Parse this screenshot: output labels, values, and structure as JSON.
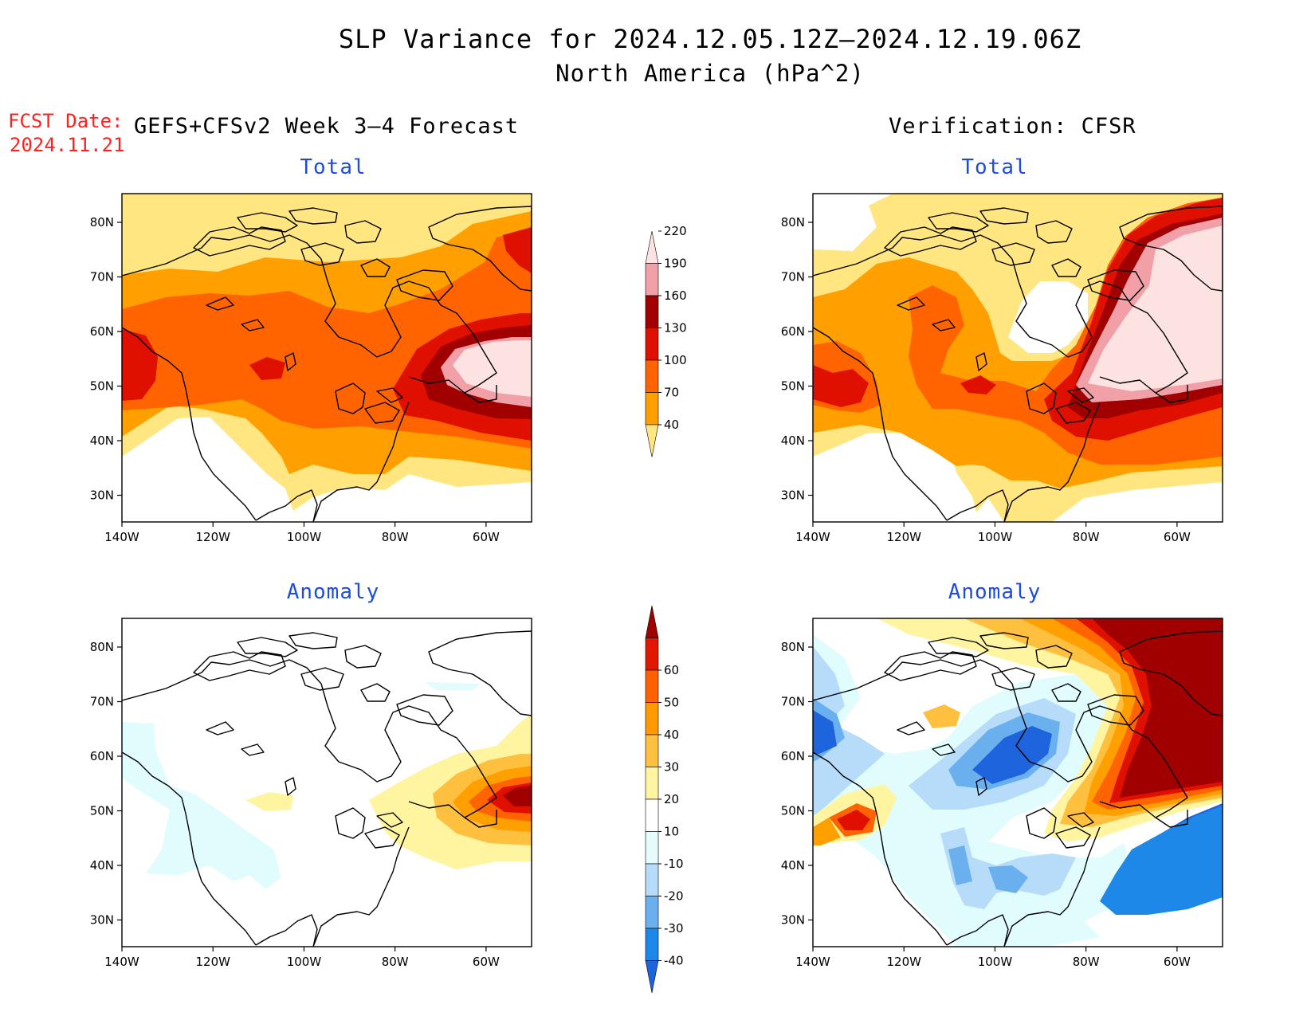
{
  "header": {
    "title": "SLP Variance for 2024.12.05.12Z–2024.12.19.06Z",
    "subtitle": "North America (hPa^2)",
    "fcst_date_label": "FCST Date:",
    "fcst_date": "2024.11.21",
    "left_column": "GEFS+CFSv2 Week 3–4 Forecast",
    "right_column": "Verification: CFSR"
  },
  "panels": {
    "forecast_total": {
      "title": "Total"
    },
    "verif_total": {
      "title": "Total"
    },
    "forecast_anomaly": {
      "title": "Anomaly"
    },
    "verif_anomaly": {
      "title": "Anomaly"
    }
  },
  "axes": {
    "lon_labels": [
      "140W",
      "120W",
      "100W",
      "80W",
      "60W"
    ],
    "lat_labels": [
      "80N",
      "70N",
      "60N",
      "50N",
      "40N",
      "30N"
    ]
  },
  "total_colorbar": {
    "levels": [
      "40",
      "70",
      "100",
      "130",
      "160",
      "190",
      "220"
    ],
    "colors": [
      "#ffe680",
      "#ffa000",
      "#ff6400",
      "#e01000",
      "#a00000",
      "#f2a0a8",
      "#fde2e2"
    ]
  },
  "anomaly_colorbar": {
    "levels": [
      "-40",
      "-30",
      "-20",
      "-10",
      "10",
      "20",
      "30",
      "40",
      "50",
      "60"
    ],
    "colors": [
      "#1e64dc",
      "#1e88e8",
      "#6bb0ee",
      "#b6dcfa",
      "#e6fcfc",
      "#ffffff",
      "#fff4a0",
      "#ffc040",
      "#ff9a00",
      "#ff6000",
      "#e01800",
      "#a00000"
    ]
  },
  "map_colors": {
    "white": "#ffffff",
    "yellow": "#ffe680",
    "orange": "#ffa000",
    "dark_orange": "#ff6400",
    "red": "#e01000",
    "dark_red": "#a00000",
    "pink": "#f2a0a8",
    "light_pink": "#fde2e2",
    "pale_cyan": "#e0fcfc",
    "light_blue": "#b6dcfa",
    "mid_blue": "#6bb0ee",
    "blue": "#1e88e8",
    "dark_blue": "#1e64dc",
    "pale_yellow": "#fff4a0",
    "light_orange": "#ffc040"
  }
}
